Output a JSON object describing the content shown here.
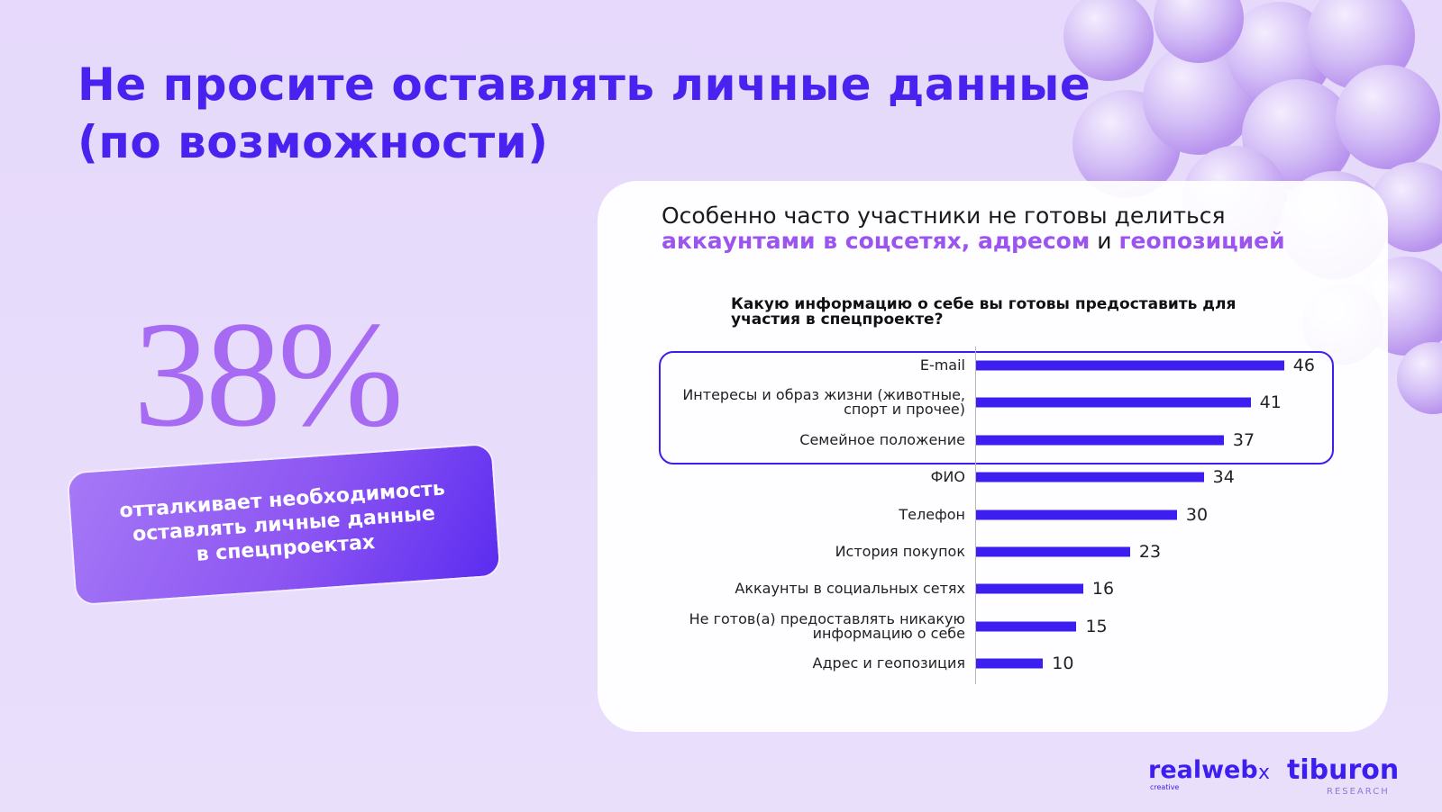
{
  "slide_title": [
    "Не просите оставлять личные данные",
    "(по возможности)"
  ],
  "stat": {
    "value": "38%",
    "caption": [
      "отталкивает необходимость",
      "оставлять личные данные",
      "в спецпроектах"
    ]
  },
  "subtitle": {
    "line1": "Особенно часто участники не готовы делиться",
    "highlight1": "аккаунтами в соцсетях, адресом",
    "joiner": "и",
    "highlight2": "геопозицией"
  },
  "chart_data": {
    "type": "bar",
    "orientation": "horizontal",
    "title": "Какую информацию о себе вы готовы предоставить для участия в спецпроекте?",
    "categories": [
      "E-mail",
      "Интересы и образ жизни (животные, спорт и прочее)",
      "Семейное положение",
      "ФИО",
      "Телефон",
      "История покупок",
      "Аккаунты в социальных сетях",
      "Не готов(а) предоставлять никакую информацию о себе",
      "Адрес и геопозиция"
    ],
    "values": [
      46,
      41,
      37,
      34,
      30,
      23,
      16,
      15,
      10
    ],
    "color": "#3c1ff0"
  },
  "logos": {
    "left": "realweb",
    "left_sub": "creative",
    "sep": "x",
    "right": "tiburon",
    "right_sub": "RESEARCH"
  }
}
